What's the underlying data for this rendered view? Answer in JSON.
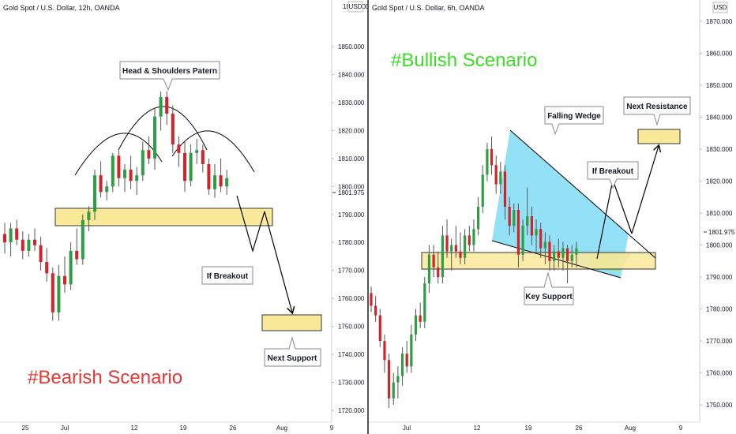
{
  "colors": {
    "up": "#2e9e44",
    "down": "#d0232a",
    "zone": "#fbe99a",
    "zone_stroke": "#333333",
    "wedge": "#7fdcf5",
    "wedge_zone": "#9be6a6",
    "bearish": "#e53935",
    "bullish": "#3ddc27",
    "price_tag_bg": "#ffffff"
  },
  "chart_data": [
    {
      "type": "candlestick",
      "header": {
        "title": "Gold Spot / U.S. Dollar, 12h, OANDA",
        "currency": "USD"
      },
      "price_axis": {
        "ticks": [
          "1850.000",
          "1840.000",
          "1830.000",
          "1820.000",
          "1810.000",
          "1800.000",
          "1790.000",
          "1780.000",
          "1770.000",
          "1760.000",
          "1750.000",
          "1740.000",
          "1730.000",
          "1720.000"
        ],
        "min": 1718.3,
        "max": 1864.4,
        "top_clip": "1860.000",
        "current_price": "1801.975"
      },
      "time_axis": {
        "labels": [
          "25",
          "Jul",
          "12",
          "19",
          "26",
          "Aug",
          "9"
        ]
      },
      "candles": [
        {
          "o": 1783,
          "h": 1787,
          "l": 1776,
          "c": 1780
        },
        {
          "o": 1780,
          "h": 1787,
          "l": 1775,
          "c": 1785
        },
        {
          "o": 1785,
          "h": 1788,
          "l": 1779,
          "c": 1781
        },
        {
          "o": 1781,
          "h": 1784,
          "l": 1774,
          "c": 1777
        },
        {
          "o": 1777,
          "h": 1783,
          "l": 1775,
          "c": 1781
        },
        {
          "o": 1781,
          "h": 1785,
          "l": 1777,
          "c": 1779
        },
        {
          "o": 1779,
          "h": 1782,
          "l": 1770,
          "c": 1773
        },
        {
          "o": 1773,
          "h": 1778,
          "l": 1766,
          "c": 1769
        },
        {
          "o": 1769,
          "h": 1771,
          "l": 1752,
          "c": 1755
        },
        {
          "o": 1755,
          "h": 1772,
          "l": 1752,
          "c": 1768
        },
        {
          "o": 1768,
          "h": 1775,
          "l": 1762,
          "c": 1765
        },
        {
          "o": 1765,
          "h": 1780,
          "l": 1763,
          "c": 1777
        },
        {
          "o": 1777,
          "h": 1785,
          "l": 1772,
          "c": 1774
        },
        {
          "o": 1774,
          "h": 1790,
          "l": 1772,
          "c": 1788
        },
        {
          "o": 1788,
          "h": 1793,
          "l": 1784,
          "c": 1791
        },
        {
          "o": 1791,
          "h": 1806,
          "l": 1788,
          "c": 1804
        },
        {
          "o": 1804,
          "h": 1809,
          "l": 1796,
          "c": 1798
        },
        {
          "o": 1798,
          "h": 1802,
          "l": 1795,
          "c": 1800
        },
        {
          "o": 1800,
          "h": 1812,
          "l": 1798,
          "c": 1811
        },
        {
          "o": 1811,
          "h": 1813,
          "l": 1800,
          "c": 1803
        },
        {
          "o": 1803,
          "h": 1808,
          "l": 1798,
          "c": 1806
        },
        {
          "o": 1806,
          "h": 1811,
          "l": 1799,
          "c": 1802
        },
        {
          "o": 1802,
          "h": 1807,
          "l": 1797,
          "c": 1804
        },
        {
          "o": 1804,
          "h": 1816,
          "l": 1802,
          "c": 1813
        },
        {
          "o": 1813,
          "h": 1818,
          "l": 1808,
          "c": 1810
        },
        {
          "o": 1810,
          "h": 1828,
          "l": 1806,
          "c": 1825
        },
        {
          "o": 1825,
          "h": 1834,
          "l": 1820,
          "c": 1832
        },
        {
          "o": 1832,
          "h": 1834,
          "l": 1822,
          "c": 1826
        },
        {
          "o": 1826,
          "h": 1829,
          "l": 1812,
          "c": 1815
        },
        {
          "o": 1815,
          "h": 1818,
          "l": 1807,
          "c": 1812
        },
        {
          "o": 1812,
          "h": 1816,
          "l": 1798,
          "c": 1802
        },
        {
          "o": 1802,
          "h": 1815,
          "l": 1800,
          "c": 1812
        },
        {
          "o": 1812,
          "h": 1817,
          "l": 1808,
          "c": 1813
        },
        {
          "o": 1813,
          "h": 1815,
          "l": 1805,
          "c": 1808
        },
        {
          "o": 1808,
          "h": 1810,
          "l": 1797,
          "c": 1799
        },
        {
          "o": 1799,
          "h": 1808,
          "l": 1796,
          "c": 1804
        },
        {
          "o": 1804,
          "h": 1810,
          "l": 1798,
          "c": 1800
        },
        {
          "o": 1800,
          "h": 1806,
          "l": 1797,
          "c": 1803
        }
      ],
      "annotations": {
        "pattern_label": "Head & Shoulders Patern",
        "breakout_label": "If Breakout",
        "target_label": "Next Support",
        "scenario_label": "#Bearish Scenario"
      }
    },
    {
      "type": "candlestick",
      "header": {
        "title": "Gold Spot / U.S. Dollar, 6h, OANDA",
        "currency": "USD"
      },
      "price_axis": {
        "ticks": [
          "1870.000",
          "1860.000",
          "1850.000",
          "1840.000",
          "1830.000",
          "1820.000",
          "1810.000",
          "1800.000",
          "1790.000",
          "1780.000",
          "1770.000",
          "1760.000",
          "1750.000"
        ],
        "min": 1746.8,
        "max": 1874.7,
        "current_price": "1801.975"
      },
      "time_axis": {
        "labels": [
          "Jul",
          "12",
          "19",
          "26",
          "Aug",
          "9"
        ]
      },
      "candles": [
        {
          "o": 1785,
          "h": 1787,
          "l": 1779,
          "c": 1781
        },
        {
          "o": 1781,
          "h": 1784,
          "l": 1776,
          "c": 1778
        },
        {
          "o": 1778,
          "h": 1780,
          "l": 1768,
          "c": 1770
        },
        {
          "o": 1770,
          "h": 1772,
          "l": 1760,
          "c": 1764
        },
        {
          "o": 1764,
          "h": 1766,
          "l": 1749,
          "c": 1752
        },
        {
          "o": 1752,
          "h": 1760,
          "l": 1750,
          "c": 1757
        },
        {
          "o": 1757,
          "h": 1762,
          "l": 1752,
          "c": 1759
        },
        {
          "o": 1759,
          "h": 1768,
          "l": 1756,
          "c": 1766
        },
        {
          "o": 1766,
          "h": 1770,
          "l": 1760,
          "c": 1762
        },
        {
          "o": 1762,
          "h": 1775,
          "l": 1760,
          "c": 1772
        },
        {
          "o": 1772,
          "h": 1780,
          "l": 1770,
          "c": 1778
        },
        {
          "o": 1778,
          "h": 1782,
          "l": 1774,
          "c": 1776
        },
        {
          "o": 1776,
          "h": 1790,
          "l": 1774,
          "c": 1788
        },
        {
          "o": 1788,
          "h": 1800,
          "l": 1785,
          "c": 1797
        },
        {
          "o": 1797,
          "h": 1800,
          "l": 1790,
          "c": 1793
        },
        {
          "o": 1793,
          "h": 1798,
          "l": 1788,
          "c": 1790
        },
        {
          "o": 1790,
          "h": 1806,
          "l": 1788,
          "c": 1803
        },
        {
          "o": 1803,
          "h": 1808,
          "l": 1796,
          "c": 1798
        },
        {
          "o": 1798,
          "h": 1802,
          "l": 1792,
          "c": 1800
        },
        {
          "o": 1800,
          "h": 1806,
          "l": 1796,
          "c": 1798
        },
        {
          "o": 1798,
          "h": 1804,
          "l": 1794,
          "c": 1796
        },
        {
          "o": 1796,
          "h": 1805,
          "l": 1794,
          "c": 1803
        },
        {
          "o": 1803,
          "h": 1806,
          "l": 1798,
          "c": 1800
        },
        {
          "o": 1800,
          "h": 1808,
          "l": 1798,
          "c": 1805
        },
        {
          "o": 1805,
          "h": 1815,
          "l": 1803,
          "c": 1812
        },
        {
          "o": 1812,
          "h": 1825,
          "l": 1810,
          "c": 1822
        },
        {
          "o": 1822,
          "h": 1832,
          "l": 1820,
          "c": 1830
        },
        {
          "o": 1830,
          "h": 1834,
          "l": 1822,
          "c": 1825
        },
        {
          "o": 1825,
          "h": 1828,
          "l": 1816,
          "c": 1819
        },
        {
          "o": 1819,
          "h": 1826,
          "l": 1816,
          "c": 1823
        },
        {
          "o": 1823,
          "h": 1825,
          "l": 1808,
          "c": 1812
        },
        {
          "o": 1812,
          "h": 1815,
          "l": 1803,
          "c": 1806
        },
        {
          "o": 1806,
          "h": 1813,
          "l": 1804,
          "c": 1811
        },
        {
          "o": 1811,
          "h": 1813,
          "l": 1793,
          "c": 1797
        },
        {
          "o": 1797,
          "h": 1808,
          "l": 1795,
          "c": 1806
        },
        {
          "o": 1806,
          "h": 1818,
          "l": 1803,
          "c": 1809
        },
        {
          "o": 1809,
          "h": 1812,
          "l": 1800,
          "c": 1803
        },
        {
          "o": 1803,
          "h": 1808,
          "l": 1798,
          "c": 1805
        },
        {
          "o": 1805,
          "h": 1807,
          "l": 1796,
          "c": 1799
        },
        {
          "o": 1799,
          "h": 1804,
          "l": 1794,
          "c": 1801
        },
        {
          "o": 1801,
          "h": 1803,
          "l": 1792,
          "c": 1795
        },
        {
          "o": 1795,
          "h": 1800,
          "l": 1792,
          "c": 1798
        },
        {
          "o": 1798,
          "h": 1802,
          "l": 1793,
          "c": 1796
        },
        {
          "o": 1796,
          "h": 1801,
          "l": 1792,
          "c": 1799
        },
        {
          "o": 1799,
          "h": 1800,
          "l": 1788,
          "c": 1795
        },
        {
          "o": 1795,
          "h": 1800,
          "l": 1793,
          "c": 1797
        },
        {
          "o": 1797,
          "h": 1801,
          "l": 1793,
          "c": 1799
        }
      ],
      "annotations": {
        "scenario_label": "#Bullish Scenario",
        "pattern_label": "Falling Wedge",
        "breakout_label": "If Breakout",
        "target_label": "Next Resistance",
        "support_label": "Key Support"
      }
    }
  ]
}
